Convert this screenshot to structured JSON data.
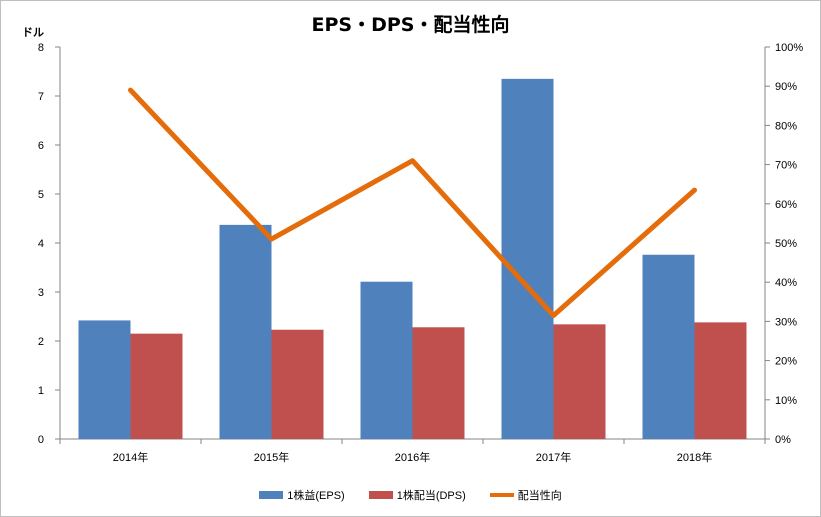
{
  "chart_data": {
    "type": "bar",
    "title": "EPS・DPS・配当性向",
    "ylabel": "ドル",
    "categories": [
      "2014年",
      "2015年",
      "2016年",
      "2017年",
      "2018年"
    ],
    "ylim": [
      0,
      8
    ],
    "y2lim": [
      0,
      100
    ],
    "yticks": [
      "0",
      "1",
      "2",
      "3",
      "4",
      "5",
      "6",
      "7",
      "8"
    ],
    "y2ticks": [
      "0%",
      "10%",
      "20%",
      "30%",
      "40%",
      "50%",
      "60%",
      "70%",
      "80%",
      "90%",
      "100%"
    ],
    "series": [
      {
        "name": "1株益(EPS)",
        "type": "bar",
        "axis": "left",
        "color": "#4f81bd",
        "values": [
          2.42,
          4.37,
          3.21,
          7.35,
          3.76
        ]
      },
      {
        "name": "1株配当(DPS)",
        "type": "bar",
        "axis": "left",
        "color": "#c0504d",
        "values": [
          2.15,
          2.23,
          2.28,
          2.34,
          2.38
        ]
      },
      {
        "name": "配当性向",
        "type": "line",
        "axis": "right",
        "color": "#e46c0a",
        "values": [
          89,
          51,
          71,
          31.5,
          63.5
        ]
      }
    ],
    "grid": false,
    "legend": "bottom"
  }
}
